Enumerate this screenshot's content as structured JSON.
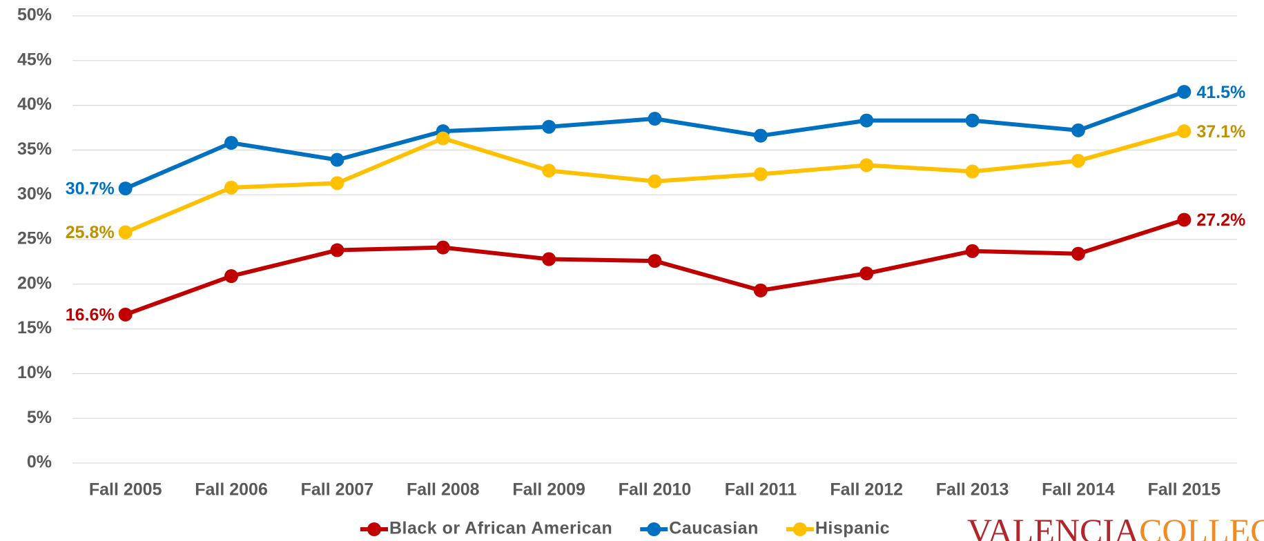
{
  "chart_data": {
    "type": "line",
    "categories": [
      "Fall 2005",
      "Fall 2006",
      "Fall 2007",
      "Fall 2008",
      "Fall 2009",
      "Fall 2010",
      "Fall 2011",
      "Fall 2012",
      "Fall 2013",
      "Fall 2014",
      "Fall 2015"
    ],
    "series": [
      {
        "name": "Black or African American",
        "color": "#c00000",
        "label_color": "#c00000",
        "values": [
          16.6,
          20.9,
          23.8,
          24.1,
          22.8,
          22.6,
          19.3,
          21.2,
          23.7,
          23.4,
          27.2
        ],
        "value_labels": [
          "16.6%",
          null,
          null,
          null,
          null,
          null,
          null,
          null,
          null,
          null,
          "27.2%"
        ]
      },
      {
        "name": "Caucasian",
        "color": "#0070c0",
        "label_color": "#0070c0",
        "values": [
          30.7,
          35.8,
          33.9,
          37.1,
          37.6,
          38.5,
          36.6,
          38.3,
          38.3,
          37.2,
          41.5
        ],
        "value_labels": [
          "30.7%",
          null,
          null,
          null,
          null,
          null,
          null,
          null,
          null,
          null,
          "41.5%"
        ]
      },
      {
        "name": "Hispanic",
        "color": "#ffc000",
        "label_color": "#bf9000",
        "values": [
          25.8,
          30.8,
          31.3,
          36.3,
          32.7,
          31.5,
          32.3,
          33.3,
          32.6,
          33.8,
          37.1
        ],
        "value_labels": [
          "25.8%",
          null,
          null,
          null,
          null,
          null,
          null,
          null,
          null,
          null,
          "37.1%"
        ]
      }
    ],
    "ylim": [
      0,
      50
    ],
    "yticks": [
      {
        "value": 0,
        "label": "0%"
      },
      {
        "value": 5,
        "label": "5%"
      },
      {
        "value": 10,
        "label": "10%"
      },
      {
        "value": 15,
        "label": "15%"
      },
      {
        "value": 20,
        "label": "20%"
      },
      {
        "value": 25,
        "label": "25%"
      },
      {
        "value": 30,
        "label": "30%"
      },
      {
        "value": 35,
        "label": "35%"
      },
      {
        "value": 40,
        "label": "40%"
      },
      {
        "value": 45,
        "label": "45%"
      },
      {
        "value": 50,
        "label": "50%"
      }
    ],
    "grid": true,
    "legend": "bottom"
  },
  "logo": {
    "part1": "VALENCIA",
    "part2": "COLLEGE"
  }
}
